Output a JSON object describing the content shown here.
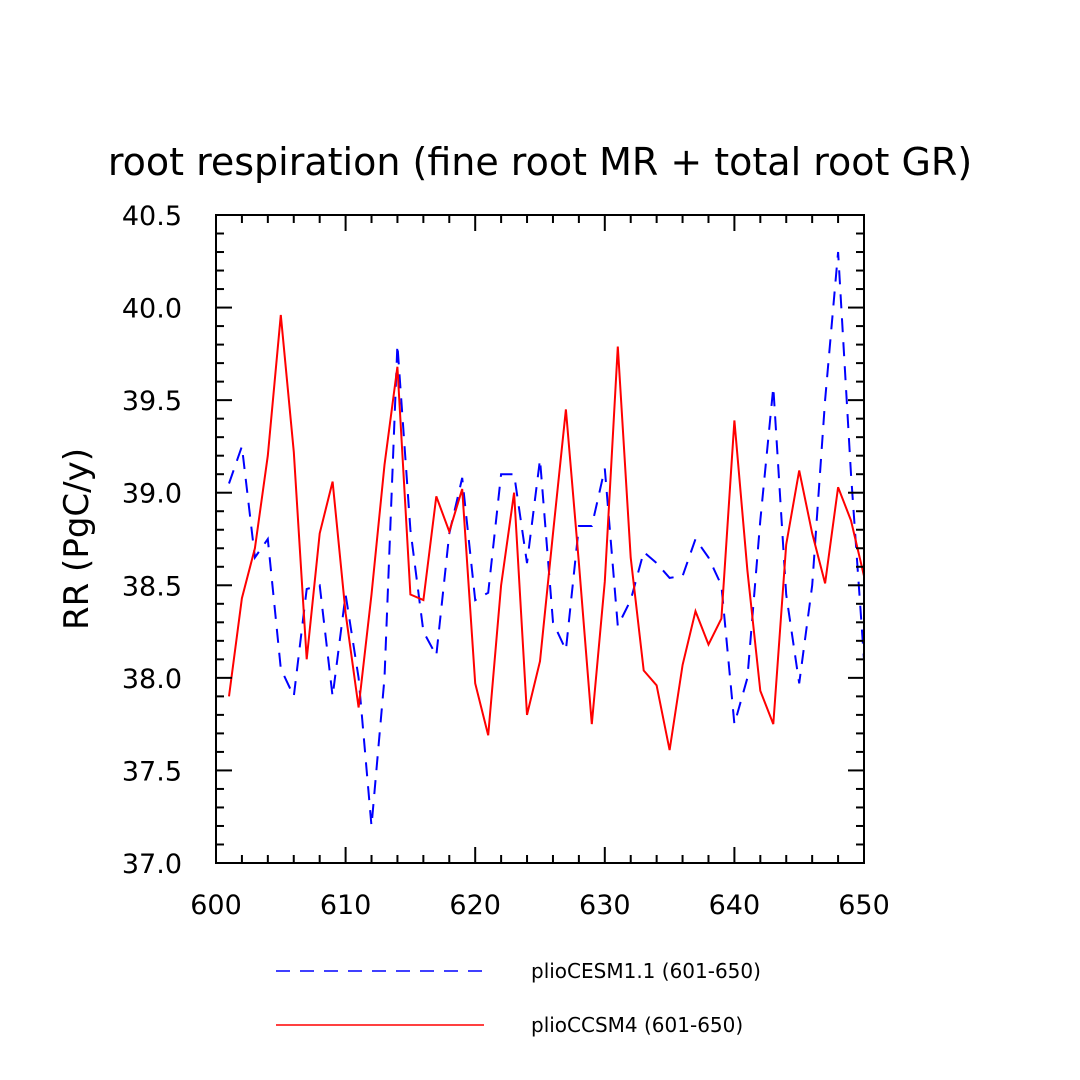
{
  "chart_data": {
    "type": "line",
    "title": "root respiration (fine root MR + total root GR)",
    "xlabel": "",
    "ylabel": "RR  (PgC/y)",
    "xlim": [
      600,
      650
    ],
    "ylim": [
      37.0,
      40.5
    ],
    "xticks": [
      600,
      610,
      620,
      630,
      640,
      650
    ],
    "xtick_labels": [
      "600",
      "610",
      "620",
      "630",
      "640",
      "650"
    ],
    "yticks": [
      37.0,
      37.5,
      38.0,
      38.5,
      39.0,
      39.5,
      40.0,
      40.5
    ],
    "ytick_labels": [
      "37.0",
      "37.5",
      "38.0",
      "38.5",
      "39.0",
      "39.5",
      "40.0",
      "40.5"
    ],
    "grid": false,
    "legend_position": "bottom",
    "x": [
      601,
      602,
      603,
      604,
      605,
      606,
      607,
      608,
      609,
      610,
      611,
      612,
      613,
      614,
      615,
      616,
      617,
      618,
      619,
      620,
      621,
      622,
      623,
      624,
      625,
      626,
      627,
      628,
      629,
      630,
      631,
      632,
      633,
      634,
      635,
      636,
      637,
      638,
      639,
      640,
      641,
      642,
      643,
      644,
      645,
      646,
      647,
      648,
      649,
      650
    ],
    "series": [
      {
        "name": "plioCESM1.1 (601-650)",
        "color": "#0000ff",
        "dash": "dashed",
        "values": [
          39.05,
          39.25,
          38.65,
          38.75,
          38.05,
          37.9,
          38.48,
          38.5,
          37.9,
          38.45,
          38.0,
          37.2,
          38.0,
          39.8,
          38.8,
          38.25,
          38.12,
          38.78,
          39.08,
          38.42,
          38.46,
          39.1,
          39.1,
          38.62,
          39.18,
          38.3,
          38.15,
          38.82,
          38.82,
          39.13,
          38.28,
          38.42,
          38.68,
          38.62,
          38.54,
          38.55,
          38.75,
          38.65,
          38.5,
          37.75,
          38.0,
          38.85,
          39.57,
          38.45,
          37.97,
          38.5,
          39.5,
          40.3,
          39.1,
          38.1
        ]
      },
      {
        "name": "plioCCSM4 (601-650)",
        "color": "#ff0000",
        "dash": "solid",
        "values": [
          37.9,
          38.43,
          38.7,
          39.2,
          39.96,
          39.22,
          38.1,
          38.78,
          39.06,
          38.35,
          37.84,
          38.45,
          39.15,
          39.68,
          38.45,
          38.42,
          38.98,
          38.79,
          39.02,
          37.97,
          37.69,
          38.5,
          39.0,
          37.8,
          38.09,
          38.78,
          39.45,
          38.62,
          37.75,
          38.52,
          39.79,
          38.65,
          38.04,
          37.96,
          37.61,
          38.07,
          38.36,
          38.18,
          38.32,
          39.39,
          38.58,
          37.93,
          37.75,
          38.72,
          39.12,
          38.78,
          38.51,
          39.03,
          38.85,
          38.55
        ]
      }
    ]
  }
}
